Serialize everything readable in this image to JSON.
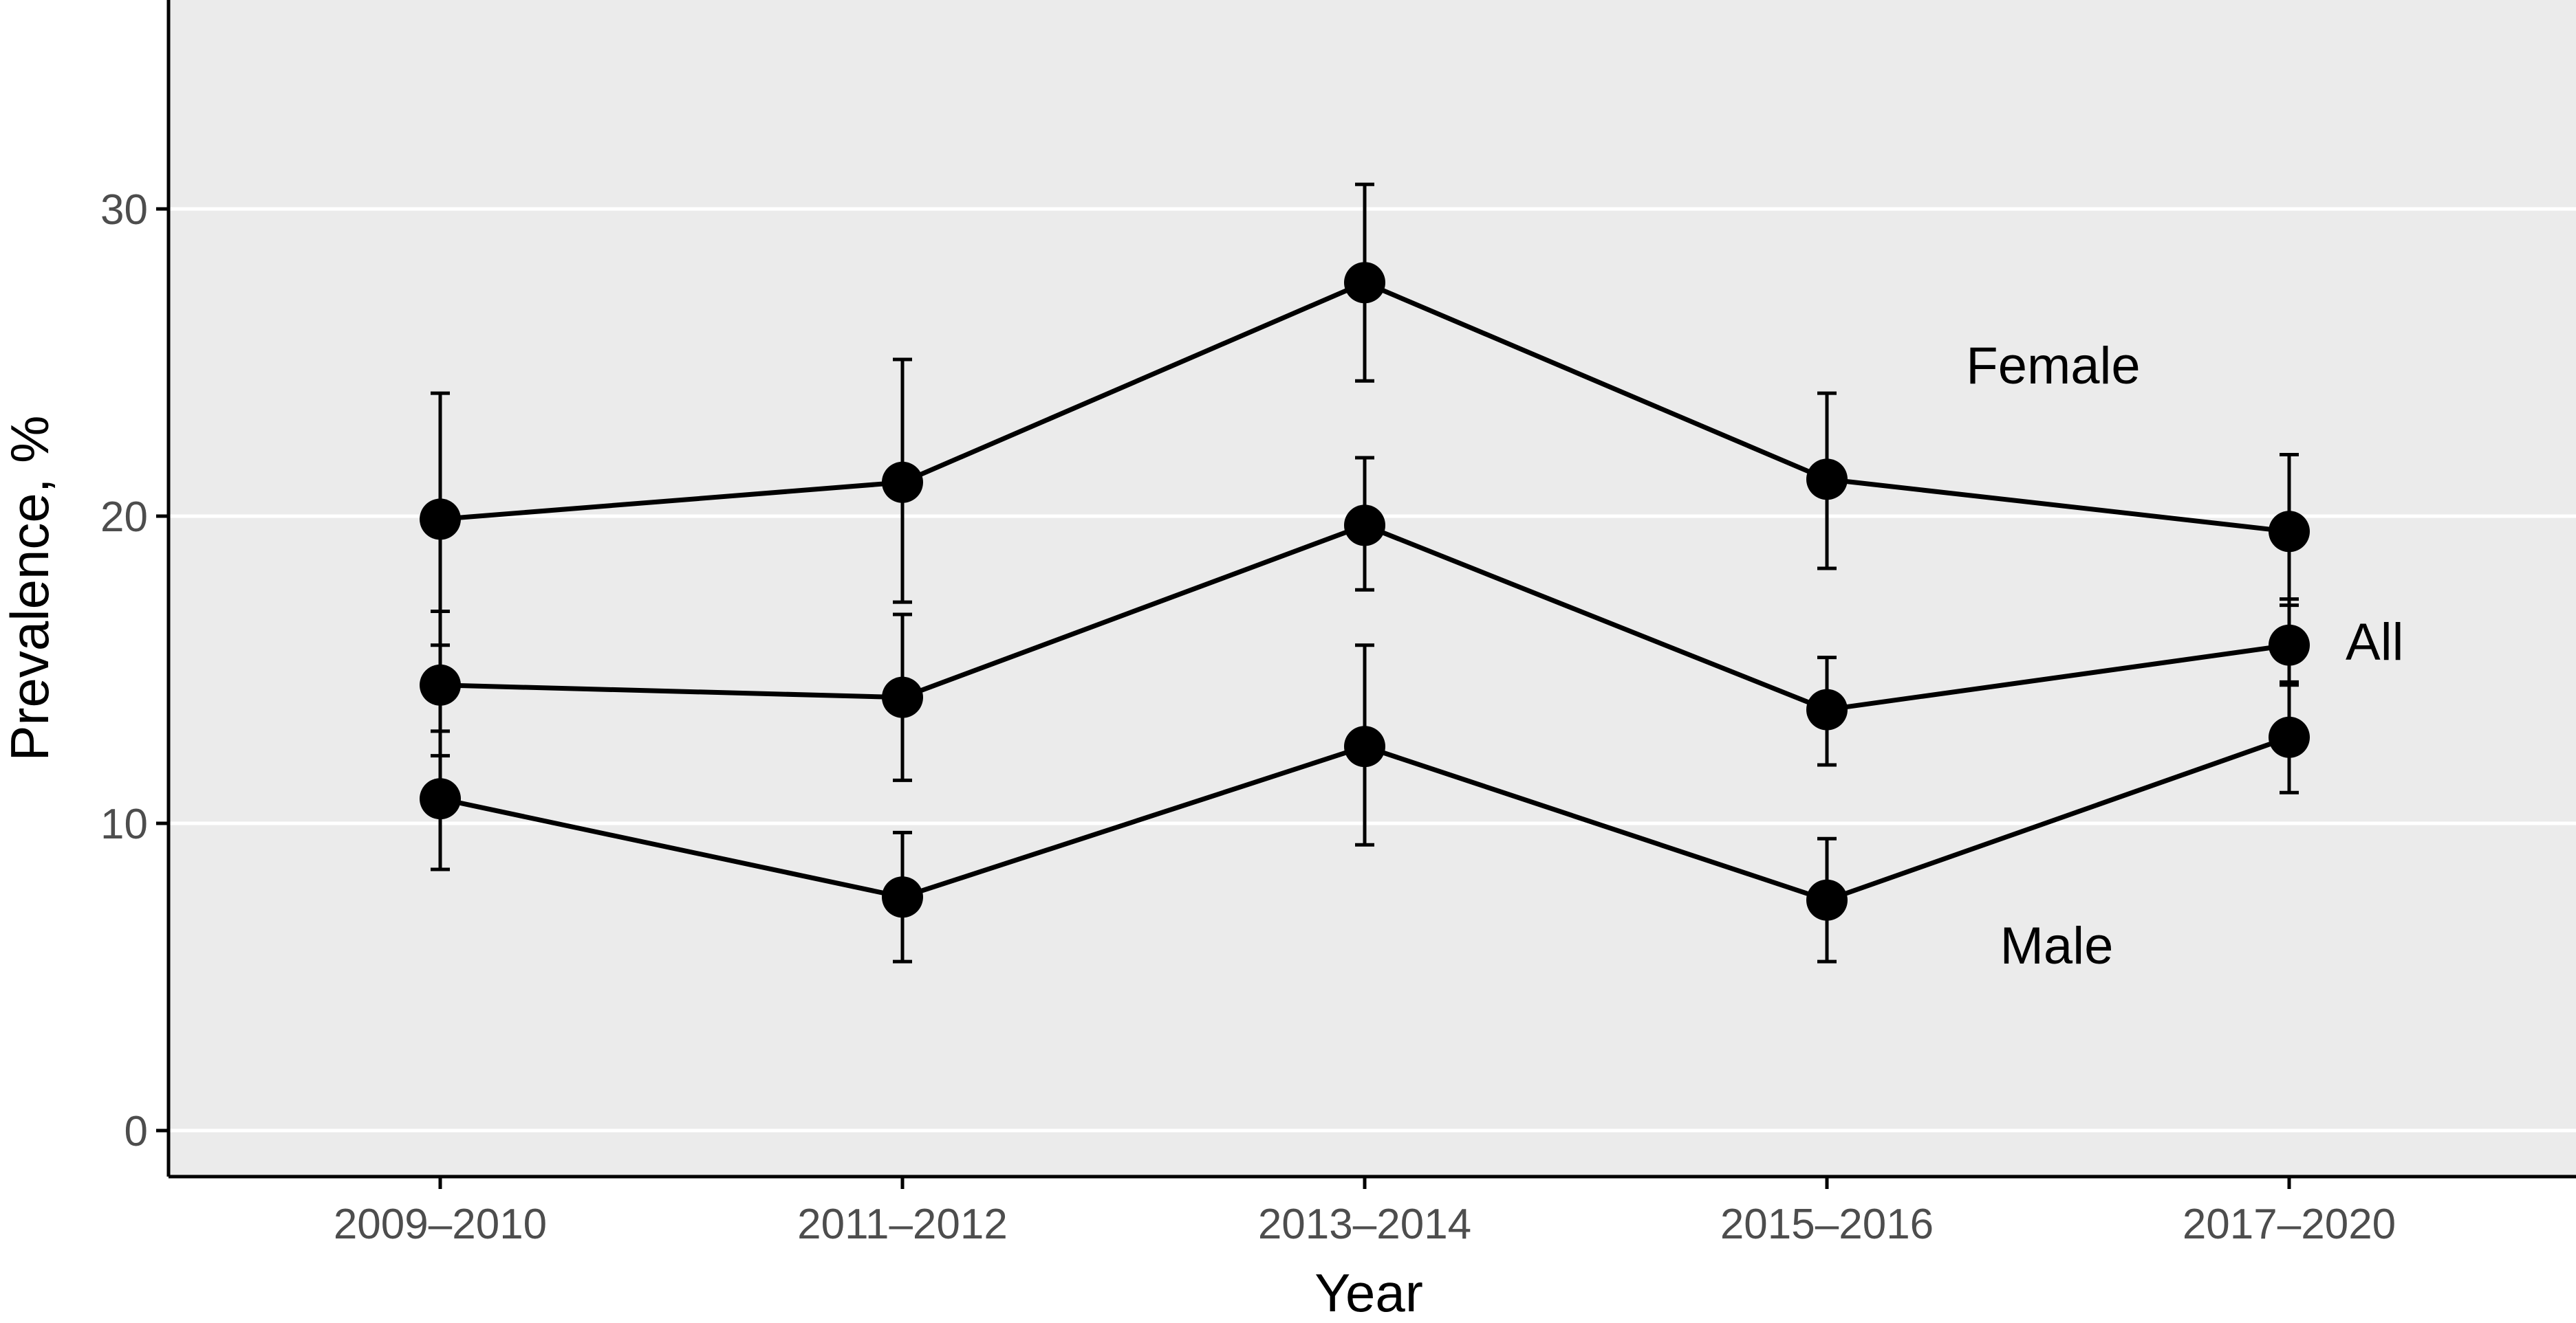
{
  "chart_data": {
    "type": "line",
    "title": "",
    "xlabel": "Year",
    "ylabel": "Prevalence, %",
    "categories": [
      "2009–2010",
      "2011–2012",
      "2013–2014",
      "2015–2016",
      "2017–2020"
    ],
    "ylim": [
      -1.5,
      36.8
    ],
    "yticks": [
      0,
      10,
      20,
      30
    ],
    "grid": true,
    "legend": "none (series labeled directly on plot)",
    "colors": {
      "panel": "#ebebeb",
      "grid": "#ffffff",
      "line": "#000000",
      "text": "#4d4d4d"
    },
    "series": [
      {
        "name": "Female",
        "values": [
          19.9,
          21.1,
          27.6,
          21.2,
          19.5
        ],
        "lower": [
          15.8,
          17.2,
          24.4,
          18.3,
          17.1
        ],
        "upper": [
          24.0,
          25.1,
          30.8,
          24.0,
          22.0
        ]
      },
      {
        "name": "All",
        "values": [
          14.5,
          14.1,
          19.7,
          13.7,
          15.8
        ],
        "lower": [
          12.2,
          11.4,
          17.6,
          11.9,
          14.5
        ],
        "upper": [
          16.9,
          16.8,
          21.9,
          15.4,
          17.3
        ]
      },
      {
        "name": "Male",
        "values": [
          10.8,
          7.6,
          12.5,
          7.5,
          12.8
        ],
        "lower": [
          8.5,
          5.5,
          9.3,
          5.5,
          11.0
        ],
        "upper": [
          13.0,
          9.7,
          15.8,
          9.5,
          14.6
        ]
      }
    ]
  }
}
